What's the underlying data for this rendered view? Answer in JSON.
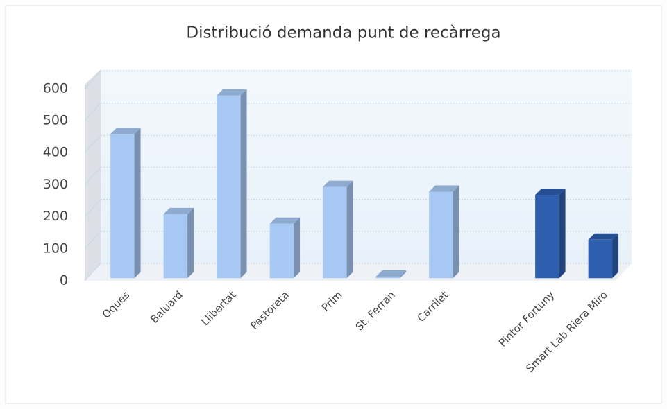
{
  "chart_data": {
    "type": "bar3d",
    "title": "Distribució demanda punt de recàrrega",
    "categories": [
      "Oques",
      "Baluard",
      "Llibertat",
      "Pastoreta",
      "Prim",
      "St. Ferran",
      "Carrilet",
      null,
      "Pintor Fortuny",
      "Smart Lab Riera Miro"
    ],
    "values": [
      450,
      200,
      570,
      170,
      285,
      5,
      270,
      null,
      260,
      120
    ],
    "colors": [
      "#a8c8f4",
      "#a8c8f4",
      "#a8c8f4",
      "#a8c8f4",
      "#a8c8f4",
      "#a8c8f4",
      "#a8c8f4",
      null,
      "#2e5eae",
      "#2e5eae"
    ],
    "ylim": [
      0,
      600
    ],
    "yticks": [
      0,
      100,
      200,
      300,
      400,
      500,
      600
    ],
    "grid": true
  }
}
